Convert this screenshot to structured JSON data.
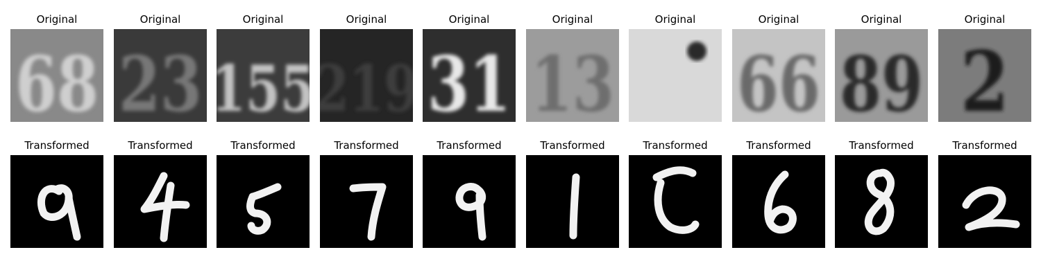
{
  "figure": {
    "rows": [
      {
        "row": "original",
        "label": "Original",
        "colors": {
          "background": "#8a8a8a",
          "ink": "#d4d4d4"
        },
        "panels": [
          {
            "digits": "68",
            "bg": "#898989",
            "fg": "#cfcfcf"
          },
          {
            "digits": "23",
            "bg": "#3a3a3a",
            "fg": "#777777"
          },
          {
            "digits": "155",
            "bg": "#3c3c3c",
            "fg": "#c2c2c2"
          },
          {
            "digits": "219",
            "bg": "#252525",
            "fg": "#3e3e3e"
          },
          {
            "digits": "31",
            "bg": "#2e2e2e",
            "fg": "#e8e8e8"
          },
          {
            "digits": "13",
            "bg": "#9c9c9c",
            "fg": "#6e6e6e"
          },
          {
            "digits": "",
            "bg": "#d9d9d9",
            "fg": "#2a2a2a"
          },
          {
            "digits": "66",
            "bg": "#c4c4c4",
            "fg": "#6a6a6a"
          },
          {
            "digits": "89",
            "bg": "#9a9a9a",
            "fg": "#2a2a2a"
          },
          {
            "digits": "2",
            "bg": "#7c7c7c",
            "fg": "#1e1e1e"
          }
        ]
      },
      {
        "row": "transformed",
        "label": "Transformed",
        "colors": {
          "background": "#000000",
          "ink": "#f2f2f2"
        },
        "panels": [
          {
            "digit": "9"
          },
          {
            "digit": "4"
          },
          {
            "digit": "5"
          },
          {
            "digit": "7"
          },
          {
            "digit": "9"
          },
          {
            "digit": "1"
          },
          {
            "digit": "5"
          },
          {
            "digit": "6"
          },
          {
            "digit": "8"
          },
          {
            "digit": "2"
          }
        ]
      }
    ]
  }
}
